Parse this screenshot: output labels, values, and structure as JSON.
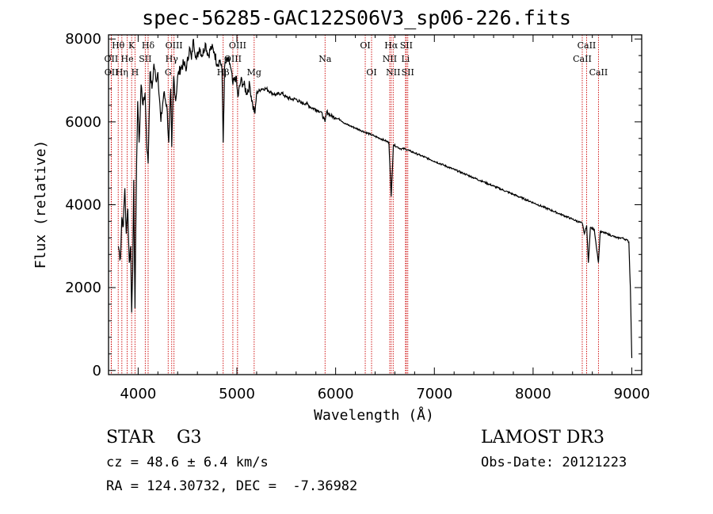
{
  "chart_data": {
    "type": "line",
    "title": "spec-56285-GAC122S06V3_sp06-226.fits",
    "xlabel": "Wavelength (Å)",
    "ylabel": "Flux (relative)",
    "xlim": [
      3700,
      9100
    ],
    "ylim": [
      -100,
      8100
    ],
    "x_ticks": [
      4000,
      5000,
      6000,
      7000,
      8000,
      9000
    ],
    "y_ticks": [
      0,
      2000,
      4000,
      6000,
      8000
    ],
    "series": [
      {
        "name": "flux",
        "points": [
          [
            3800,
            3000
          ],
          [
            3820,
            2700
          ],
          [
            3835,
            3700
          ],
          [
            3850,
            3500
          ],
          [
            3865,
            4400
          ],
          [
            3880,
            3300
          ],
          [
            3895,
            3900
          ],
          [
            3910,
            2600
          ],
          [
            3925,
            3000
          ],
          [
            3934,
            1400
          ],
          [
            3945,
            2400
          ],
          [
            3955,
            4600
          ],
          [
            3968,
            1500
          ],
          [
            3980,
            4200
          ],
          [
            3995,
            6500
          ],
          [
            4010,
            5500
          ],
          [
            4030,
            6900
          ],
          [
            4050,
            6400
          ],
          [
            4070,
            6700
          ],
          [
            4090,
            5300
          ],
          [
            4101,
            5000
          ],
          [
            4120,
            7200
          ],
          [
            4140,
            6800
          ],
          [
            4160,
            7400
          ],
          [
            4180,
            7000
          ],
          [
            4200,
            7200
          ],
          [
            4230,
            6000
          ],
          [
            4260,
            6700
          ],
          [
            4290,
            6400
          ],
          [
            4310,
            5500
          ],
          [
            4330,
            6800
          ],
          [
            4340,
            5400
          ],
          [
            4360,
            7100
          ],
          [
            4380,
            6500
          ],
          [
            4400,
            7100
          ],
          [
            4430,
            7300
          ],
          [
            4460,
            7400
          ],
          [
            4490,
            7300
          ],
          [
            4520,
            7800
          ],
          [
            4540,
            7500
          ],
          [
            4560,
            8000
          ],
          [
            4590,
            7500
          ],
          [
            4620,
            7800
          ],
          [
            4650,
            7600
          ],
          [
            4680,
            7900
          ],
          [
            4710,
            7600
          ],
          [
            4740,
            7800
          ],
          [
            4770,
            7700
          ],
          [
            4800,
            7400
          ],
          [
            4830,
            7500
          ],
          [
            4850,
            7200
          ],
          [
            4861,
            5500
          ],
          [
            4875,
            7300
          ],
          [
            4900,
            7500
          ],
          [
            4930,
            7400
          ],
          [
            4960,
            6900
          ],
          [
            4990,
            7100
          ],
          [
            5010,
            6600
          ],
          [
            5040,
            7000
          ],
          [
            5070,
            6900
          ],
          [
            5100,
            6700
          ],
          [
            5130,
            6900
          ],
          [
            5160,
            6400
          ],
          [
            5183,
            6200
          ],
          [
            5200,
            6700
          ],
          [
            5250,
            6800
          ],
          [
            5300,
            6800
          ],
          [
            5350,
            6700
          ],
          [
            5400,
            6650
          ],
          [
            5450,
            6700
          ],
          [
            5500,
            6600
          ],
          [
            5550,
            6550
          ],
          [
            5600,
            6550
          ],
          [
            5650,
            6450
          ],
          [
            5700,
            6450
          ],
          [
            5750,
            6350
          ],
          [
            5800,
            6300
          ],
          [
            5850,
            6250
          ],
          [
            5893,
            6000
          ],
          [
            5910,
            6250
          ],
          [
            5950,
            6150
          ],
          [
            6000,
            6100
          ],
          [
            6050,
            6050
          ],
          [
            6100,
            5950
          ],
          [
            6150,
            5900
          ],
          [
            6200,
            5850
          ],
          [
            6250,
            5800
          ],
          [
            6300,
            5750
          ],
          [
            6350,
            5700
          ],
          [
            6400,
            5650
          ],
          [
            6450,
            5600
          ],
          [
            6500,
            5550
          ],
          [
            6540,
            5500
          ],
          [
            6563,
            4200
          ],
          [
            6585,
            5450
          ],
          [
            6620,
            5400
          ],
          [
            6660,
            5350
          ],
          [
            6700,
            5350
          ],
          [
            6750,
            5300
          ],
          [
            6800,
            5250
          ],
          [
            6850,
            5200
          ],
          [
            6900,
            5150
          ],
          [
            6950,
            5100
          ],
          [
            7000,
            5050
          ],
          [
            7100,
            4950
          ],
          [
            7200,
            4850
          ],
          [
            7300,
            4750
          ],
          [
            7400,
            4650
          ],
          [
            7500,
            4550
          ],
          [
            7600,
            4450
          ],
          [
            7700,
            4350
          ],
          [
            7800,
            4250
          ],
          [
            7900,
            4150
          ],
          [
            8000,
            4050
          ],
          [
            8100,
            3950
          ],
          [
            8200,
            3850
          ],
          [
            8300,
            3750
          ],
          [
            8400,
            3650
          ],
          [
            8498,
            3550
          ],
          [
            8520,
            3300
          ],
          [
            8542,
            3500
          ],
          [
            8560,
            2600
          ],
          [
            8580,
            3450
          ],
          [
            8620,
            3400
          ],
          [
            8662,
            2600
          ],
          [
            8680,
            3350
          ],
          [
            8750,
            3300
          ],
          [
            8800,
            3250
          ],
          [
            8850,
            3200
          ],
          [
            8900,
            3200
          ],
          [
            8950,
            3150
          ],
          [
            8970,
            3100
          ],
          [
            8985,
            2000
          ],
          [
            9000,
            300
          ]
        ]
      }
    ],
    "line_markers": [
      {
        "label": "Hθ",
        "wavelength": 3798,
        "row": 1
      },
      {
        "label": "OII",
        "wavelength": 3727,
        "row": 2
      },
      {
        "label": "OII",
        "wavelength": 3729,
        "row": 3
      },
      {
        "label": "He",
        "wavelength": 3889,
        "row": 2
      },
      {
        "label": "Hη",
        "wavelength": 3835,
        "row": 3
      },
      {
        "label": "K",
        "wavelength": 3934,
        "row": 1
      },
      {
        "label": "SII",
        "wavelength": 4072,
        "row": 2
      },
      {
        "label": "H",
        "wavelength": 3968,
        "row": 3
      },
      {
        "label": "Hδ",
        "wavelength": 4101,
        "row": 1
      },
      {
        "label": "OIII",
        "wavelength": 4363,
        "row": 1
      },
      {
        "label": "Hγ",
        "wavelength": 4340,
        "row": 2
      },
      {
        "label": "G",
        "wavelength": 4304,
        "row": 3
      },
      {
        "label": "OIII",
        "wavelength": 5007,
        "row": 1
      },
      {
        "label": "OIII",
        "wavelength": 4959,
        "row": 2
      },
      {
        "label": "Hβ",
        "wavelength": 4861,
        "row": 3
      },
      {
        "label": "Mg",
        "wavelength": 5175,
        "row": 3
      },
      {
        "label": "Na",
        "wavelength": 5893,
        "row": 2
      },
      {
        "label": "OI",
        "wavelength": 6300,
        "row": 1
      },
      {
        "label": "OI",
        "wavelength": 6364,
        "row": 3
      },
      {
        "label": "Hα",
        "wavelength": 6563,
        "row": 1
      },
      {
        "label": "SII",
        "wavelength": 6716,
        "row": 1
      },
      {
        "label": "NII",
        "wavelength": 6548,
        "row": 2
      },
      {
        "label": "Li",
        "wavelength": 6708,
        "row": 2
      },
      {
        "label": "NII",
        "wavelength": 6583,
        "row": 3
      },
      {
        "label": "SII",
        "wavelength": 6731,
        "row": 3
      },
      {
        "label": "CaII",
        "wavelength": 8542,
        "row": 1
      },
      {
        "label": "CaII",
        "wavelength": 8498,
        "row": 2
      },
      {
        "label": "CaII",
        "wavelength": 8662,
        "row": 3
      }
    ]
  },
  "info": {
    "obj_class": "STAR    G3",
    "survey": "LAMOST DR3",
    "cz": "cz = 48.6 ± 6.4 km/s",
    "obs_date": "Obs-Date: 20121223",
    "radec": "RA = 124.30732, DEC =  -7.36982"
  },
  "colors": {
    "spectrum": "#000000",
    "marker_line": "#cc0000",
    "axes": "#000000"
  }
}
